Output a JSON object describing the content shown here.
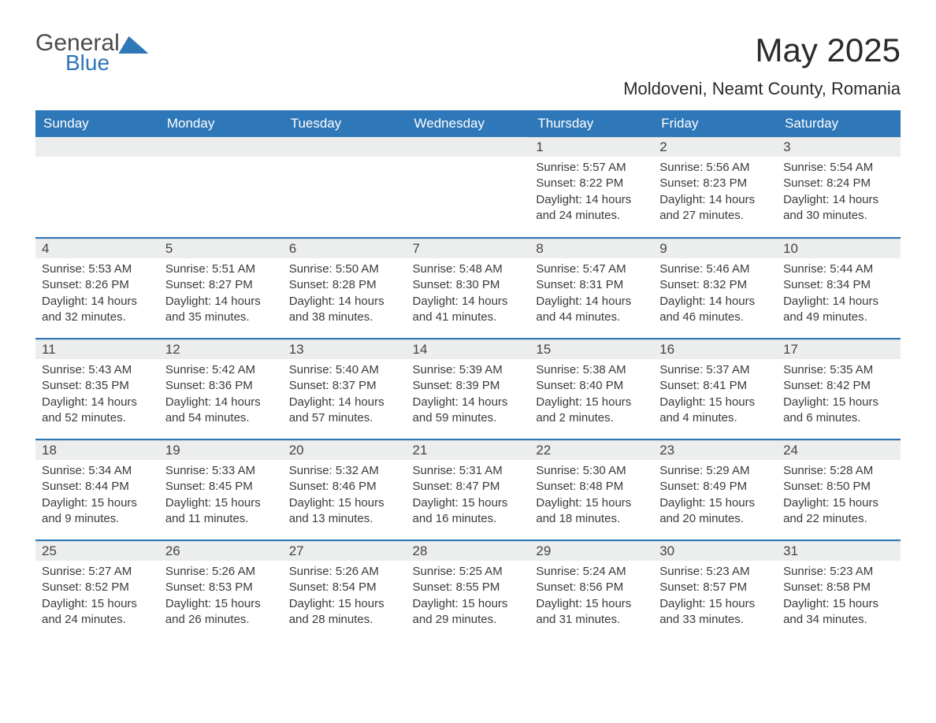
{
  "logo": {
    "word1": "General",
    "word2": "Blue"
  },
  "title": "May 2025",
  "location": "Moldoveni, Neamt County, Romania",
  "colors": {
    "header_bg": "#2e77b8",
    "header_text": "#ffffff",
    "daybar_bg": "#eceded",
    "text": "#3a3a3a",
    "page_bg": "#ffffff",
    "border": "#2e77b8"
  },
  "fonts": {
    "title_size": 42,
    "location_size": 22,
    "header_size": 17,
    "body_size": 15
  },
  "day_headers": [
    "Sunday",
    "Monday",
    "Tuesday",
    "Wednesday",
    "Thursday",
    "Friday",
    "Saturday"
  ],
  "leading_blanks": 4,
  "days": [
    {
      "n": "1",
      "sunrise": "5:57 AM",
      "sunset": "8:22 PM",
      "daylight": "14 hours and 24 minutes."
    },
    {
      "n": "2",
      "sunrise": "5:56 AM",
      "sunset": "8:23 PM",
      "daylight": "14 hours and 27 minutes."
    },
    {
      "n": "3",
      "sunrise": "5:54 AM",
      "sunset": "8:24 PM",
      "daylight": "14 hours and 30 minutes."
    },
    {
      "n": "4",
      "sunrise": "5:53 AM",
      "sunset": "8:26 PM",
      "daylight": "14 hours and 32 minutes."
    },
    {
      "n": "5",
      "sunrise": "5:51 AM",
      "sunset": "8:27 PM",
      "daylight": "14 hours and 35 minutes."
    },
    {
      "n": "6",
      "sunrise": "5:50 AM",
      "sunset": "8:28 PM",
      "daylight": "14 hours and 38 minutes."
    },
    {
      "n": "7",
      "sunrise": "5:48 AM",
      "sunset": "8:30 PM",
      "daylight": "14 hours and 41 minutes."
    },
    {
      "n": "8",
      "sunrise": "5:47 AM",
      "sunset": "8:31 PM",
      "daylight": "14 hours and 44 minutes."
    },
    {
      "n": "9",
      "sunrise": "5:46 AM",
      "sunset": "8:32 PM",
      "daylight": "14 hours and 46 minutes."
    },
    {
      "n": "10",
      "sunrise": "5:44 AM",
      "sunset": "8:34 PM",
      "daylight": "14 hours and 49 minutes."
    },
    {
      "n": "11",
      "sunrise": "5:43 AM",
      "sunset": "8:35 PM",
      "daylight": "14 hours and 52 minutes."
    },
    {
      "n": "12",
      "sunrise": "5:42 AM",
      "sunset": "8:36 PM",
      "daylight": "14 hours and 54 minutes."
    },
    {
      "n": "13",
      "sunrise": "5:40 AM",
      "sunset": "8:37 PM",
      "daylight": "14 hours and 57 minutes."
    },
    {
      "n": "14",
      "sunrise": "5:39 AM",
      "sunset": "8:39 PM",
      "daylight": "14 hours and 59 minutes."
    },
    {
      "n": "15",
      "sunrise": "5:38 AM",
      "sunset": "8:40 PM",
      "daylight": "15 hours and 2 minutes."
    },
    {
      "n": "16",
      "sunrise": "5:37 AM",
      "sunset": "8:41 PM",
      "daylight": "15 hours and 4 minutes."
    },
    {
      "n": "17",
      "sunrise": "5:35 AM",
      "sunset": "8:42 PM",
      "daylight": "15 hours and 6 minutes."
    },
    {
      "n": "18",
      "sunrise": "5:34 AM",
      "sunset": "8:44 PM",
      "daylight": "15 hours and 9 minutes."
    },
    {
      "n": "19",
      "sunrise": "5:33 AM",
      "sunset": "8:45 PM",
      "daylight": "15 hours and 11 minutes."
    },
    {
      "n": "20",
      "sunrise": "5:32 AM",
      "sunset": "8:46 PM",
      "daylight": "15 hours and 13 minutes."
    },
    {
      "n": "21",
      "sunrise": "5:31 AM",
      "sunset": "8:47 PM",
      "daylight": "15 hours and 16 minutes."
    },
    {
      "n": "22",
      "sunrise": "5:30 AM",
      "sunset": "8:48 PM",
      "daylight": "15 hours and 18 minutes."
    },
    {
      "n": "23",
      "sunrise": "5:29 AM",
      "sunset": "8:49 PM",
      "daylight": "15 hours and 20 minutes."
    },
    {
      "n": "24",
      "sunrise": "5:28 AM",
      "sunset": "8:50 PM",
      "daylight": "15 hours and 22 minutes."
    },
    {
      "n": "25",
      "sunrise": "5:27 AM",
      "sunset": "8:52 PM",
      "daylight": "15 hours and 24 minutes."
    },
    {
      "n": "26",
      "sunrise": "5:26 AM",
      "sunset": "8:53 PM",
      "daylight": "15 hours and 26 minutes."
    },
    {
      "n": "27",
      "sunrise": "5:26 AM",
      "sunset": "8:54 PM",
      "daylight": "15 hours and 28 minutes."
    },
    {
      "n": "28",
      "sunrise": "5:25 AM",
      "sunset": "8:55 PM",
      "daylight": "15 hours and 29 minutes."
    },
    {
      "n": "29",
      "sunrise": "5:24 AM",
      "sunset": "8:56 PM",
      "daylight": "15 hours and 31 minutes."
    },
    {
      "n": "30",
      "sunrise": "5:23 AM",
      "sunset": "8:57 PM",
      "daylight": "15 hours and 33 minutes."
    },
    {
      "n": "31",
      "sunrise": "5:23 AM",
      "sunset": "8:58 PM",
      "daylight": "15 hours and 34 minutes."
    }
  ],
  "labels": {
    "sunrise": "Sunrise:",
    "sunset": "Sunset:",
    "daylight": "Daylight:"
  }
}
